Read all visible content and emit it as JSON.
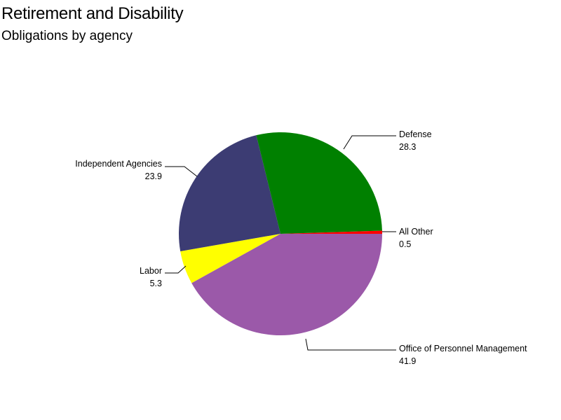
{
  "chart_data": {
    "type": "pie",
    "title": "Retirement and Disability",
    "subtitle": "Obligations by agency",
    "slices": [
      {
        "label": "Defense",
        "value": 28.3,
        "color": "#008000"
      },
      {
        "label": "All Other",
        "value": 0.5,
        "color": "#ff0000"
      },
      {
        "label": "Office of Personnel Management",
        "value": 41.9,
        "color": "#9b59a9"
      },
      {
        "label": "Labor",
        "value": 5.3,
        "color": "#ffff00"
      },
      {
        "label": "Independent Agencies",
        "value": 23.9,
        "color": "#3c3c73"
      }
    ]
  }
}
